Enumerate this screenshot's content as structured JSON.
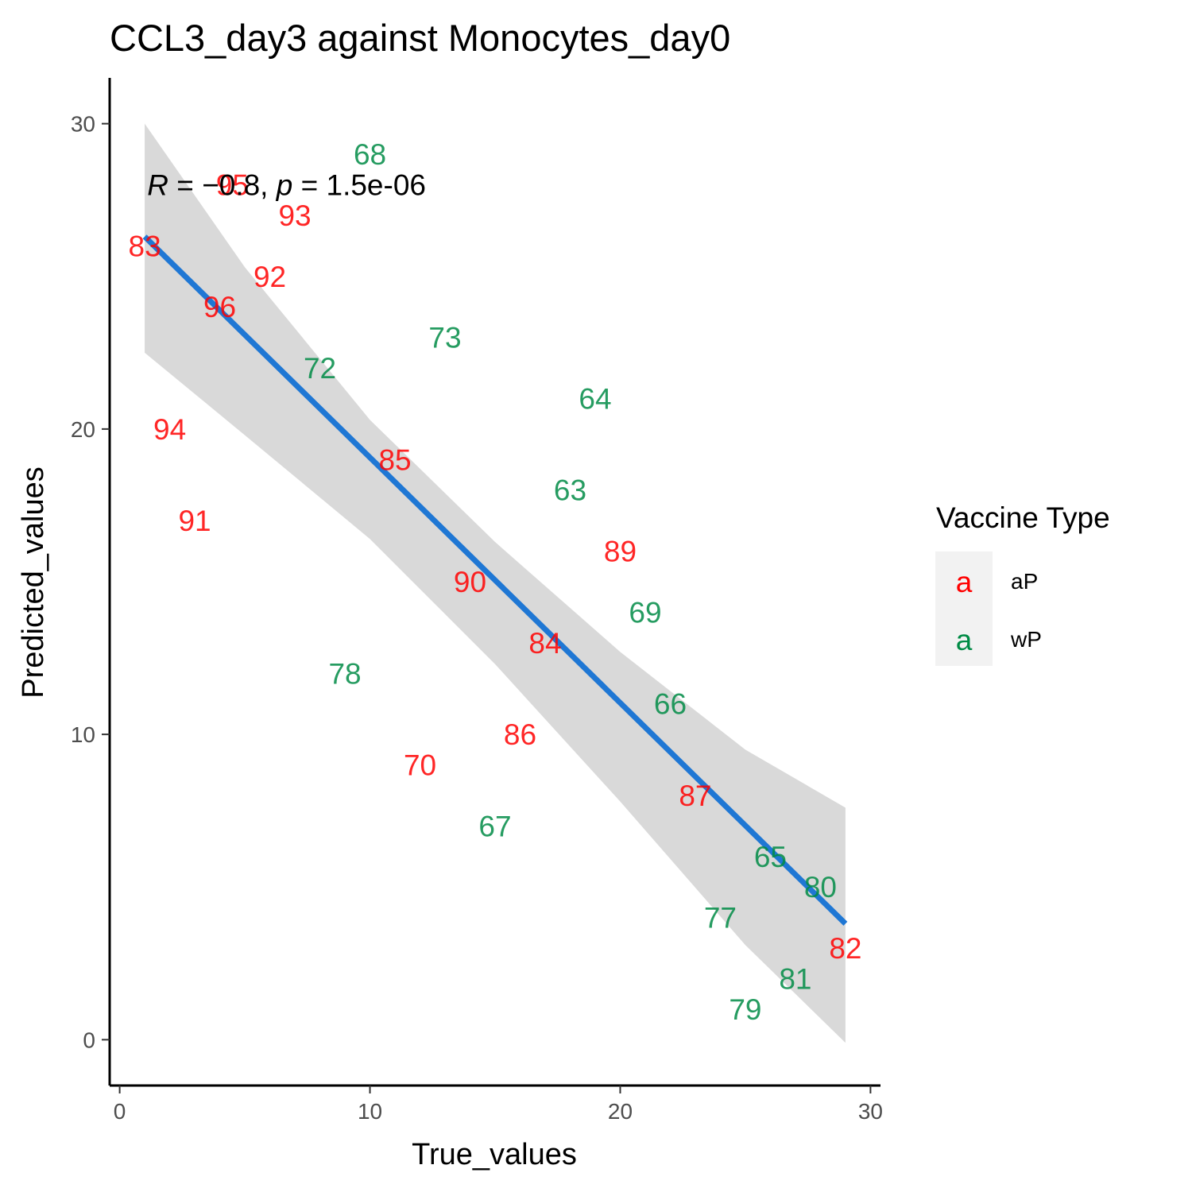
{
  "chart_data": {
    "type": "scatter",
    "title": "CCL3_day3 against Monocytes_day0",
    "xlabel": "True_values",
    "ylabel": "Predicted_values",
    "xlim": [
      -0.4,
      30.4
    ],
    "ylim": [
      -1.5,
      31.5
    ],
    "x_ticks": [
      0,
      10,
      20,
      30
    ],
    "y_ticks": [
      0,
      10,
      20,
      30
    ],
    "grid": false,
    "annotation": {
      "r_symbol": "R",
      "r_text": " = −0.8, ",
      "p_symbol": "p",
      "p_text": " = 1.5e-06",
      "x": 1.1,
      "y": 28.0
    },
    "regression": {
      "x_start": 1.0,
      "y_start": 26.3,
      "x_end": 29.0,
      "y_end": 3.8,
      "color": "#1f77d4"
    },
    "confidence_band": {
      "x": [
        1.0,
        5.0,
        10.0,
        15.0,
        20.0,
        25.0,
        29.0
      ],
      "upper": [
        30.0,
        25.3,
        20.3,
        16.3,
        12.7,
        9.5,
        7.6
      ],
      "lower": [
        22.5,
        19.8,
        16.4,
        12.3,
        7.8,
        3.1,
        -0.1
      ],
      "color": "#d9d9d9"
    },
    "series": [
      {
        "name": "aP",
        "color": "#ff0000",
        "points": [
          {
            "label": "83",
            "x": 1.0,
            "y": 26.0
          },
          {
            "label": "95",
            "x": 4.5,
            "y": 28.0
          },
          {
            "label": "93",
            "x": 7.0,
            "y": 27.0
          },
          {
            "label": "92",
            "x": 6.0,
            "y": 25.0
          },
          {
            "label": "96",
            "x": 4.0,
            "y": 24.0
          },
          {
            "label": "94",
            "x": 2.0,
            "y": 20.0
          },
          {
            "label": "91",
            "x": 3.0,
            "y": 17.0
          },
          {
            "label": "85",
            "x": 11.0,
            "y": 19.0
          },
          {
            "label": "90",
            "x": 14.0,
            "y": 15.0
          },
          {
            "label": "89",
            "x": 20.0,
            "y": 16.0
          },
          {
            "label": "84",
            "x": 17.0,
            "y": 13.0
          },
          {
            "label": "86",
            "x": 16.0,
            "y": 10.0
          },
          {
            "label": "70",
            "x": 12.0,
            "y": 9.0
          },
          {
            "label": "87",
            "x": 23.0,
            "y": 8.0
          },
          {
            "label": "82",
            "x": 29.0,
            "y": 3.0
          }
        ]
      },
      {
        "name": "wP",
        "color": "#008b45",
        "points": [
          {
            "label": "68",
            "x": 10.0,
            "y": 29.0
          },
          {
            "label": "73",
            "x": 13.0,
            "y": 23.0
          },
          {
            "label": "72",
            "x": 8.0,
            "y": 22.0
          },
          {
            "label": "64",
            "x": 19.0,
            "y": 21.0
          },
          {
            "label": "63",
            "x": 18.0,
            "y": 18.0
          },
          {
            "label": "69",
            "x": 21.0,
            "y": 14.0
          },
          {
            "label": "78",
            "x": 9.0,
            "y": 12.0
          },
          {
            "label": "66",
            "x": 22.0,
            "y": 11.0
          },
          {
            "label": "67",
            "x": 15.0,
            "y": 7.0
          },
          {
            "label": "65",
            "x": 26.0,
            "y": 6.0
          },
          {
            "label": "80",
            "x": 28.0,
            "y": 5.0
          },
          {
            "label": "77",
            "x": 24.0,
            "y": 4.0
          },
          {
            "label": "81",
            "x": 27.0,
            "y": 2.0
          },
          {
            "label": "79",
            "x": 25.0,
            "y": 1.0
          }
        ]
      }
    ],
    "legend": {
      "title": "Vaccine Type",
      "position": "right",
      "key_glyph": "a",
      "entries": [
        {
          "label": "aP",
          "color": "#ff0000"
        },
        {
          "label": "wP",
          "color": "#008b45"
        }
      ]
    }
  }
}
